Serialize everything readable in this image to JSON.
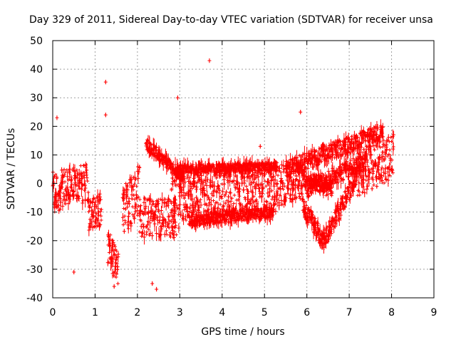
{
  "chart_data": {
    "type": "scatter",
    "title": "Day 329 of 2011, Sidereal Day-to-day VTEC variation (SDTVAR) for receiver unsa",
    "xlabel": "GPS time / hours",
    "ylabel": "SDTVAR / TECUs",
    "xlim": [
      0,
      9
    ],
    "ylim": [
      -40,
      50
    ],
    "x_ticks": [
      "0",
      "1",
      "2",
      "3",
      "4",
      "5",
      "6",
      "7",
      "8",
      "9"
    ],
    "y_ticks": [
      "-40",
      "-30",
      "-20",
      "-10",
      "0",
      "10",
      "20",
      "30",
      "40",
      "50"
    ],
    "grid": true,
    "marker": "+",
    "series_color": "#ff0000",
    "data_x_range_hours": [
      0,
      8.05
    ],
    "outliers": [
      {
        "x": 3.7,
        "y": 43
      },
      {
        "x": 1.25,
        "y": 35.5
      },
      {
        "x": 2.95,
        "y": 30
      },
      {
        "x": 5.85,
        "y": 25
      },
      {
        "x": 1.25,
        "y": 24
      },
      {
        "x": 0.1,
        "y": 23
      },
      {
        "x": 4.9,
        "y": 13
      },
      {
        "x": 0.5,
        "y": -31
      },
      {
        "x": 2.35,
        "y": -35
      },
      {
        "x": 2.45,
        "y": -37
      },
      {
        "x": 1.45,
        "y": -36
      }
    ],
    "segments": [
      {
        "x_start": 0.0,
        "x_end": 0.85,
        "y_start": -3,
        "y_end": 0,
        "spread": 7
      },
      {
        "x_start": 0.85,
        "x_end": 1.15,
        "y_start": -12,
        "y_end": -9,
        "spread": 6
      },
      {
        "x_start": 1.3,
        "x_end": 1.55,
        "y_start": -22,
        "y_end": -30,
        "spread": 6
      },
      {
        "x_start": 1.65,
        "x_end": 2.05,
        "y_start": -10,
        "y_end": -2,
        "spread": 9
      },
      {
        "x_start": 2.05,
        "x_end": 2.9,
        "y_start": -12,
        "y_end": -12,
        "spread": 7
      },
      {
        "x_start": 2.2,
        "x_end": 3.1,
        "y_start": 14,
        "y_end": 2,
        "spread": 2
      },
      {
        "x_start": 2.8,
        "x_end": 3.0,
        "y_start": -6,
        "y_end": -6,
        "spread": 12
      },
      {
        "x_start": 3.0,
        "x_end": 3.9,
        "y_start": -5,
        "y_end": -5,
        "spread": 8
      },
      {
        "x_start": 3.9,
        "x_end": 5.3,
        "y_start": -4,
        "y_end": -2,
        "spread": 8
      },
      {
        "x_start": 3.0,
        "x_end": 5.3,
        "y_start": 5,
        "y_end": 6,
        "spread": 1.5
      },
      {
        "x_start": 3.2,
        "x_end": 5.2,
        "y_start": -13,
        "y_end": -10,
        "spread": 2
      },
      {
        "x_start": 5.3,
        "x_end": 5.9,
        "y_start": -1,
        "y_end": 2,
        "spread": 7
      },
      {
        "x_start": 5.9,
        "x_end": 6.4,
        "y_start": -8,
        "y_end": -20,
        "spread": 3
      },
      {
        "x_start": 6.4,
        "x_end": 7.2,
        "y_start": -20,
        "y_end": 3,
        "spread": 3
      },
      {
        "x_start": 5.5,
        "x_end": 7.8,
        "y_start": 5,
        "y_end": 18,
        "spread": 3
      },
      {
        "x_start": 6.0,
        "x_end": 7.4,
        "y_start": -2,
        "y_end": 8,
        "spread": 3
      },
      {
        "x_start": 7.2,
        "x_end": 8.05,
        "y_start": 3,
        "y_end": 10,
        "spread": 8
      },
      {
        "x_start": 5.9,
        "x_end": 6.6,
        "y_start": 2,
        "y_end": -2,
        "spread": 3
      }
    ]
  }
}
